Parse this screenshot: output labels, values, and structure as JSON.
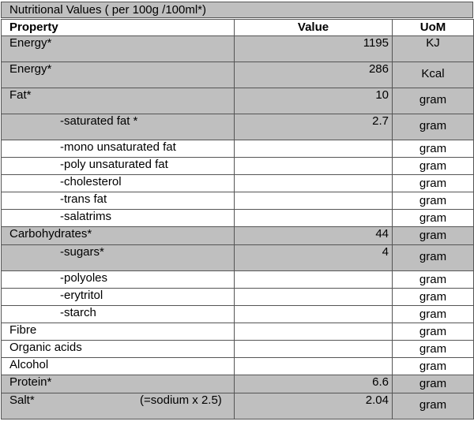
{
  "table": {
    "title": "Nutritional Values ( per 100g /100ml*)",
    "headers": {
      "property": "Property",
      "value": "Value",
      "uom": "UoM"
    },
    "rows": [
      {
        "property": "Energy*",
        "value": "1195",
        "uom": "KJ",
        "shaded": true,
        "indent": false,
        "note": ""
      },
      {
        "property": "Energy*",
        "value": "286",
        "uom": "Kcal",
        "shaded": true,
        "indent": false,
        "note": ""
      },
      {
        "property": "Fat*",
        "value": "10",
        "uom": "gram",
        "shaded": true,
        "indent": false,
        "note": ""
      },
      {
        "property": "-saturated fat *",
        "value": "2.7",
        "uom": "gram",
        "shaded": true,
        "indent": true,
        "note": ""
      },
      {
        "property": "-mono unsaturated fat",
        "value": "",
        "uom": "gram",
        "shaded": false,
        "indent": true,
        "note": ""
      },
      {
        "property": "-poly unsaturated fat",
        "value": "",
        "uom": "gram",
        "shaded": false,
        "indent": true,
        "note": ""
      },
      {
        "property": "-cholesterol",
        "value": "",
        "uom": "gram",
        "shaded": false,
        "indent": true,
        "note": ""
      },
      {
        "property": "-trans fat",
        "value": "",
        "uom": "gram",
        "shaded": false,
        "indent": true,
        "note": ""
      },
      {
        "property": "-salatrims",
        "value": "",
        "uom": "gram",
        "shaded": false,
        "indent": true,
        "note": ""
      },
      {
        "property": "Carbohydrates*",
        "value": "44",
        "uom": "gram",
        "shaded": true,
        "indent": false,
        "note": ""
      },
      {
        "property": "-sugars*",
        "value": "4",
        "uom": "gram",
        "shaded": true,
        "indent": true,
        "note": ""
      },
      {
        "property": "-polyoles",
        "value": "",
        "uom": "gram",
        "shaded": false,
        "indent": true,
        "note": ""
      },
      {
        "property": "-erytritol",
        "value": "",
        "uom": "gram",
        "shaded": false,
        "indent": true,
        "note": ""
      },
      {
        "property": "-starch",
        "value": "",
        "uom": "gram",
        "shaded": false,
        "indent": true,
        "note": ""
      },
      {
        "property": "Fibre",
        "value": "",
        "uom": "gram",
        "shaded": false,
        "indent": false,
        "note": ""
      },
      {
        "property": "Organic acids",
        "value": "",
        "uom": "gram",
        "shaded": false,
        "indent": false,
        "note": ""
      },
      {
        "property": "Alcohol",
        "value": "",
        "uom": "gram",
        "shaded": false,
        "indent": false,
        "note": ""
      },
      {
        "property": "Protein*",
        "value": "6.6",
        "uom": "gram",
        "shaded": true,
        "indent": false,
        "note": ""
      },
      {
        "property": "Salt*",
        "value": "2.04",
        "uom": "gram",
        "shaded": true,
        "indent": false,
        "note": "(=sodium x 2.5)"
      }
    ]
  },
  "colors": {
    "shaded_row": "#bfbfbf",
    "border": "#555555"
  }
}
